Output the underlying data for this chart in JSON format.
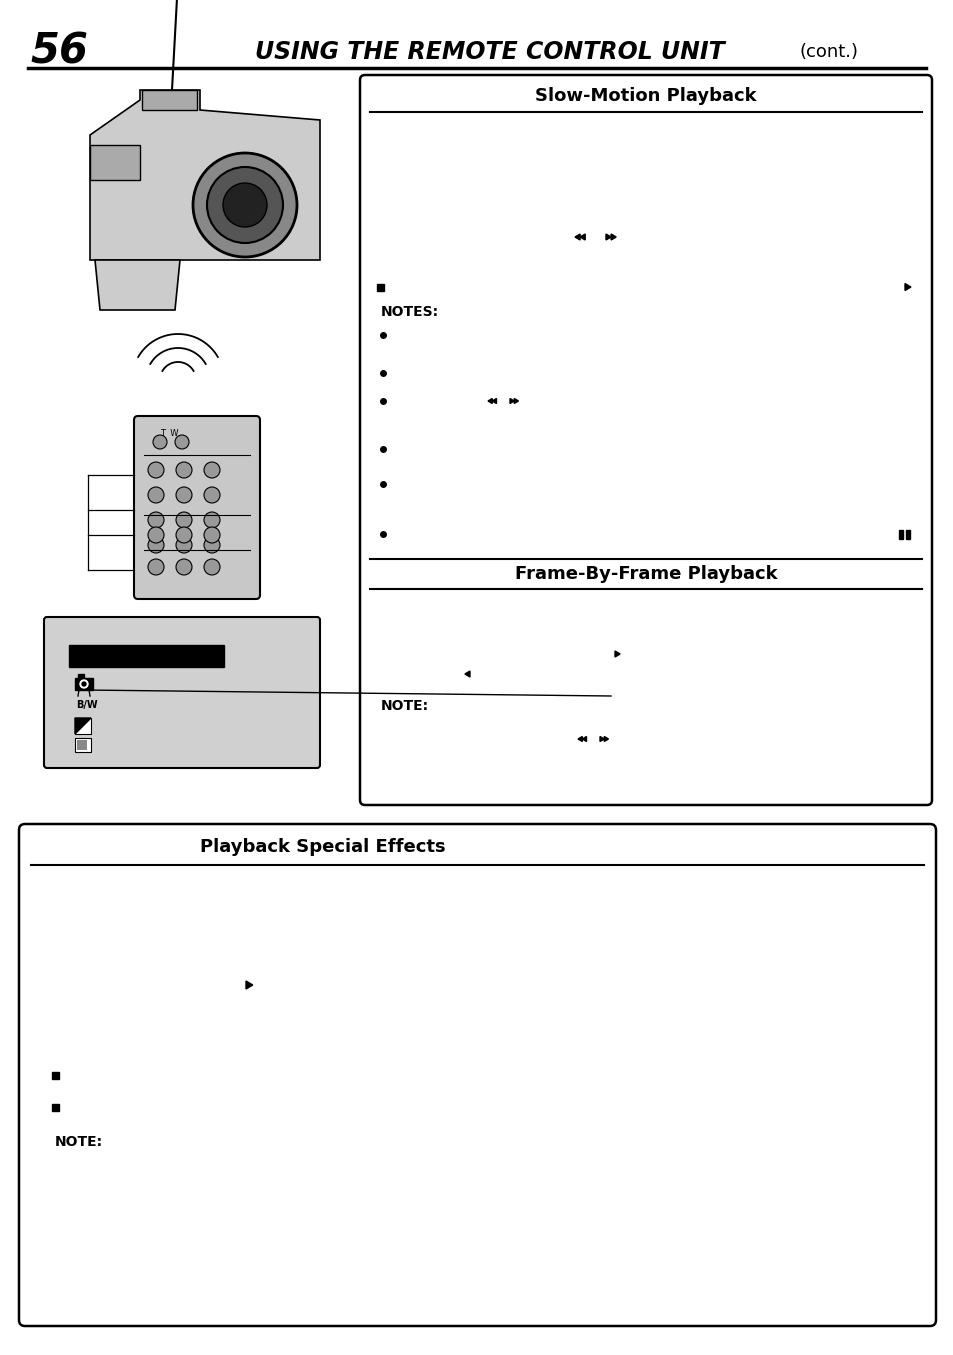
{
  "page_number": "56",
  "page_title": "USING THE REMOTE CONTROL UNIT",
  "page_title_suffix": "(cont.)",
  "bg_color": "#ffffff",
  "section1_title": "Slow-Motion Playback",
  "section2_title": "Frame-By-Frame Playback",
  "section3_title": "Playback Special Effects",
  "notes_label": "NOTES:",
  "note_label": "NOTE:",
  "note_label2": "NOTE:",
  "img_bg": "#d0d0d0",
  "lcd_bg": "#d0d0d0"
}
